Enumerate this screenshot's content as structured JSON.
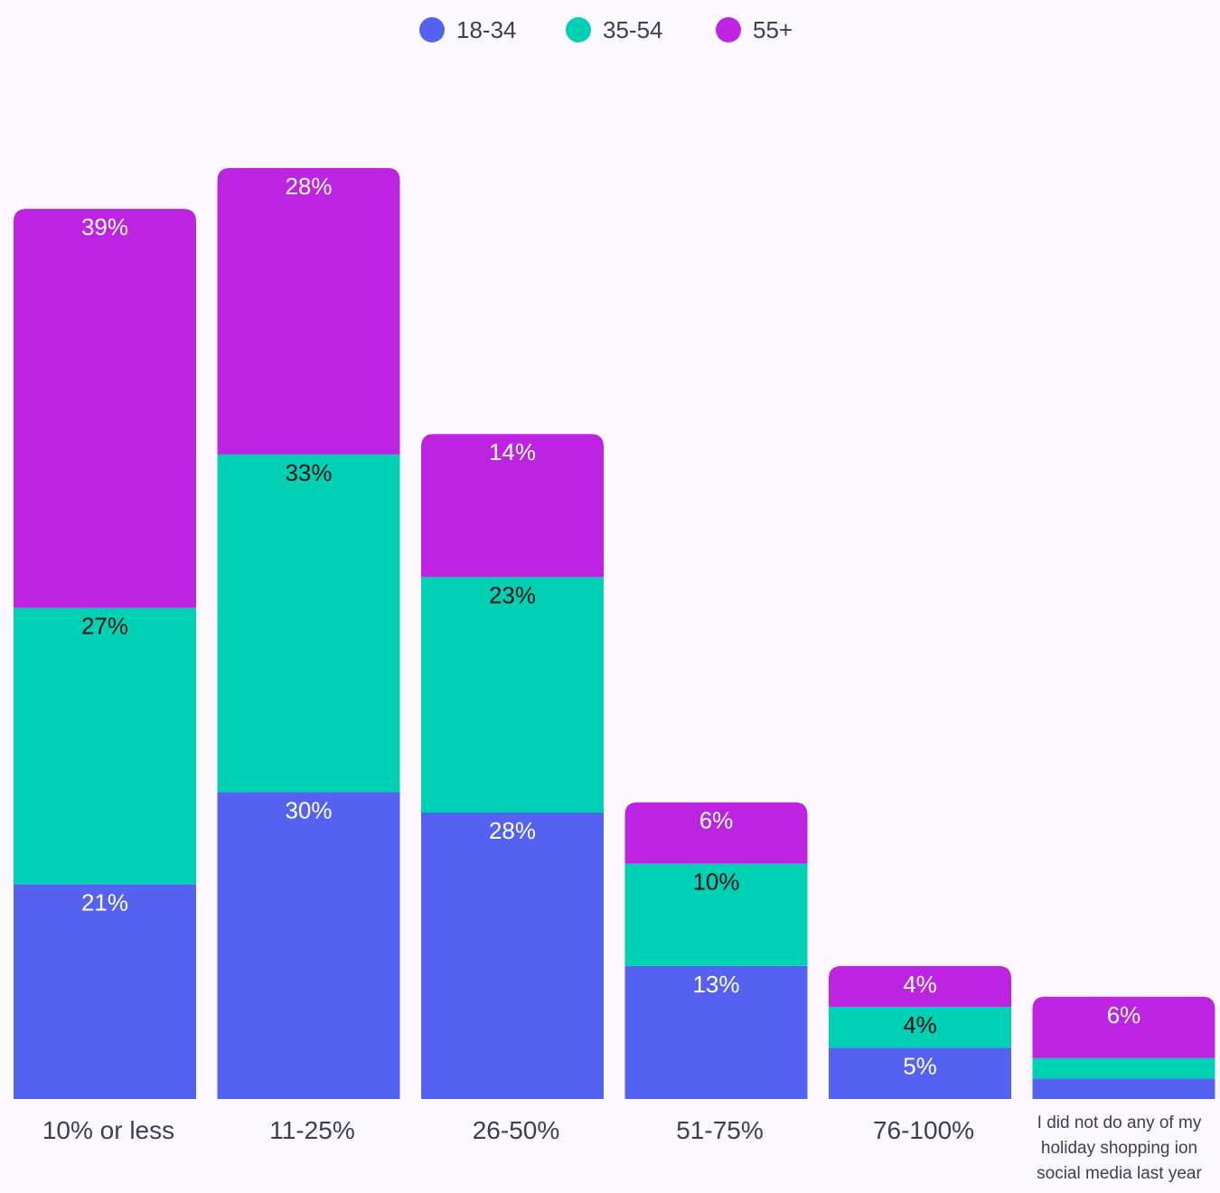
{
  "chart_data": {
    "type": "bar",
    "stacked": true,
    "categories": [
      "10% or less",
      "11-25%",
      "26-50%",
      "51-75%",
      "76-100%",
      "I did not do any of my holiday shopping ion social media last year"
    ],
    "series": [
      {
        "name": "18-34",
        "color": "#5562f1",
        "values": [
          21,
          30,
          28,
          13,
          5,
          2
        ],
        "labels": [
          "21%",
          "30%",
          "28%",
          "13%",
          "5%",
          ""
        ]
      },
      {
        "name": "35-54",
        "color": "#00d1b4",
        "values": [
          27,
          33,
          23,
          10,
          4,
          2
        ],
        "labels": [
          "27%",
          "33%",
          "23%",
          "10%",
          "4%",
          ""
        ]
      },
      {
        "name": "55+",
        "color": "#bd24e2",
        "values": [
          39,
          28,
          14,
          6,
          4,
          6
        ],
        "labels": [
          "39%",
          "28%",
          "14%",
          "6%",
          "4%",
          "6%"
        ]
      }
    ],
    "legend_position": "top-center",
    "grid": false,
    "y_axis_visible": false,
    "ylim": [
      0,
      95
    ]
  }
}
